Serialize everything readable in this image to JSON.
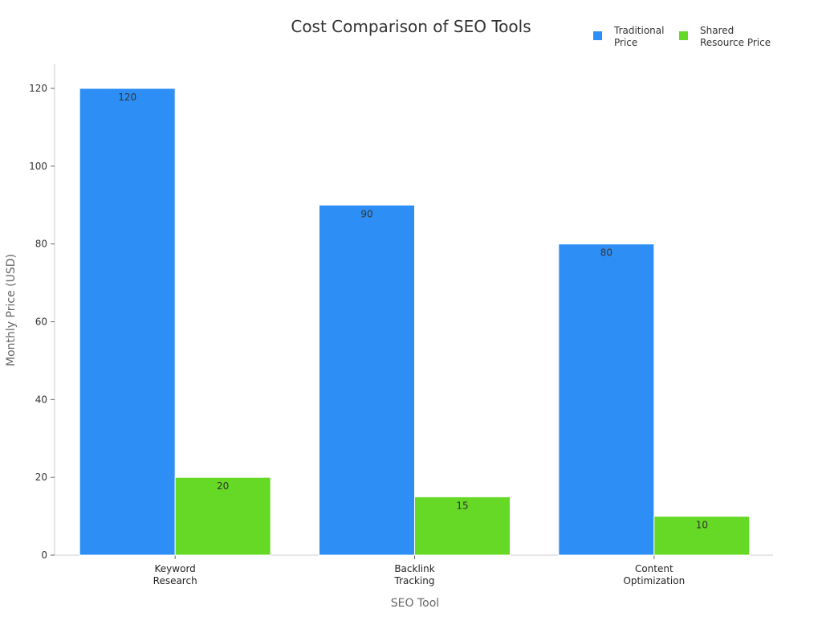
{
  "chart_data": {
    "type": "bar",
    "title": "Cost Comparison of SEO Tools",
    "xlabel": "SEO Tool",
    "ylabel": "Monthly Price (USD)",
    "categories": [
      [
        "Keyword",
        "Research"
      ],
      [
        "Backlink",
        "Tracking"
      ],
      [
        "Content",
        "Optimization"
      ]
    ],
    "series": [
      {
        "name": [
          "Traditional",
          "Price"
        ],
        "values": [
          120,
          90,
          80
        ],
        "color": "#2d8ff5"
      },
      {
        "name": [
          "Shared",
          "Resource Price"
        ],
        "values": [
          20,
          15,
          10
        ],
        "color": "#66d926"
      }
    ],
    "ylim": [
      0,
      120
    ],
    "yticks": [
      0,
      20,
      40,
      60,
      80,
      100,
      120
    ],
    "grid": false,
    "legend": "top-right"
  }
}
